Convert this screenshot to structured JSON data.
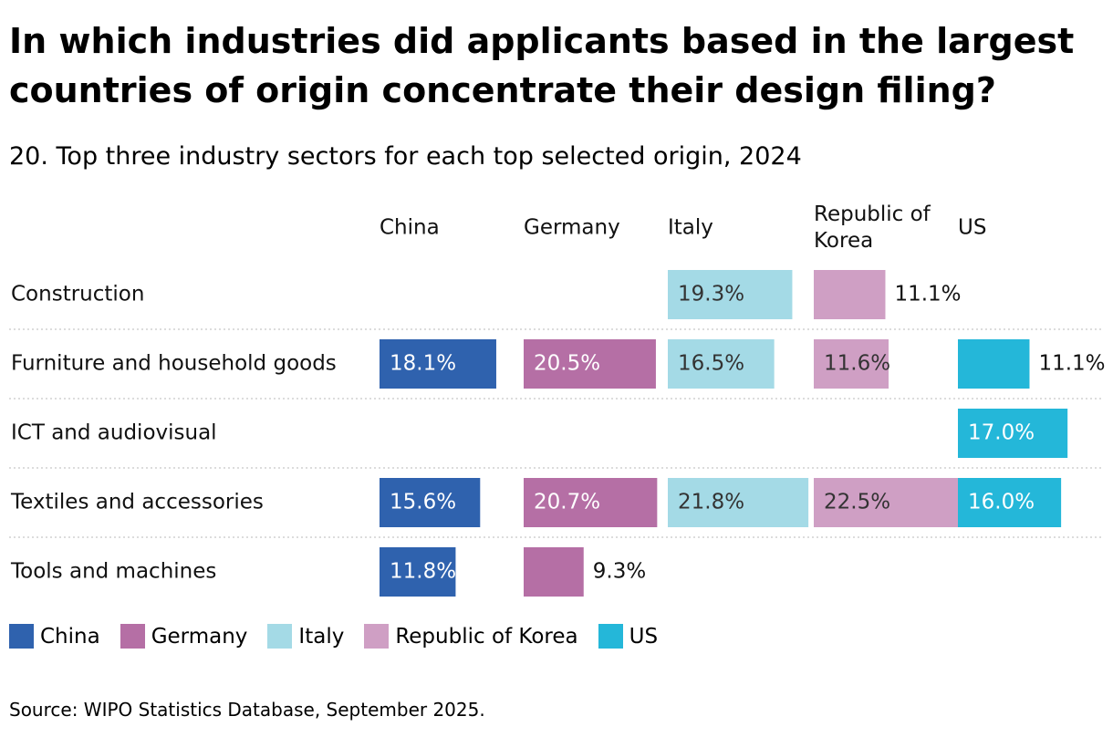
{
  "title": "In which industries did applicants based in the largest countries of origin concentrate their design filing?",
  "subtitle": "20. Top three industry sectors for each top selected origin, 2024",
  "source": "Source: WIPO Statistics Database, September 2025.",
  "chart_data": {
    "type": "bar",
    "title": "In which industries did applicants based in the largest countries of origin concentrate their design filing?",
    "subtitle": "20. Top three industry sectors for each top selected origin, 2024",
    "value_format": "percent, one decimal",
    "xlim": [
      0,
      25
    ],
    "grid": false,
    "legend_position": "bottom-left",
    "categories": [
      "Construction",
      "Furniture and household goods",
      "ICT and audiovisual",
      "Textiles and accessories",
      "Tools and machines"
    ],
    "series": [
      {
        "name": "China",
        "color": "#2f62ae",
        "values": [
          null,
          18.1,
          null,
          15.6,
          11.8
        ]
      },
      {
        "name": "Germany",
        "color": "#b56fa5",
        "values": [
          null,
          20.5,
          null,
          20.7,
          9.3
        ]
      },
      {
        "name": "Italy",
        "color": "#a4dae6",
        "values": [
          19.3,
          16.5,
          null,
          21.8,
          null
        ]
      },
      {
        "name": "Republic of Korea",
        "color": "#cf9fc4",
        "values": [
          11.1,
          11.6,
          null,
          22.5,
          null
        ]
      },
      {
        "name": "US",
        "color": "#24b7d9",
        "values": [
          null,
          11.1,
          17.0,
          16.0,
          null
        ]
      }
    ],
    "column_headers": [
      {
        "lines": [
          "China"
        ]
      },
      {
        "lines": [
          "Germany"
        ]
      },
      {
        "lines": [
          "Italy"
        ]
      },
      {
        "lines": [
          "Republic of",
          "Korea"
        ]
      },
      {
        "lines": [
          "US"
        ]
      }
    ],
    "legend": [
      "China",
      "Germany",
      "Italy",
      "Republic of Korea",
      "US"
    ]
  }
}
